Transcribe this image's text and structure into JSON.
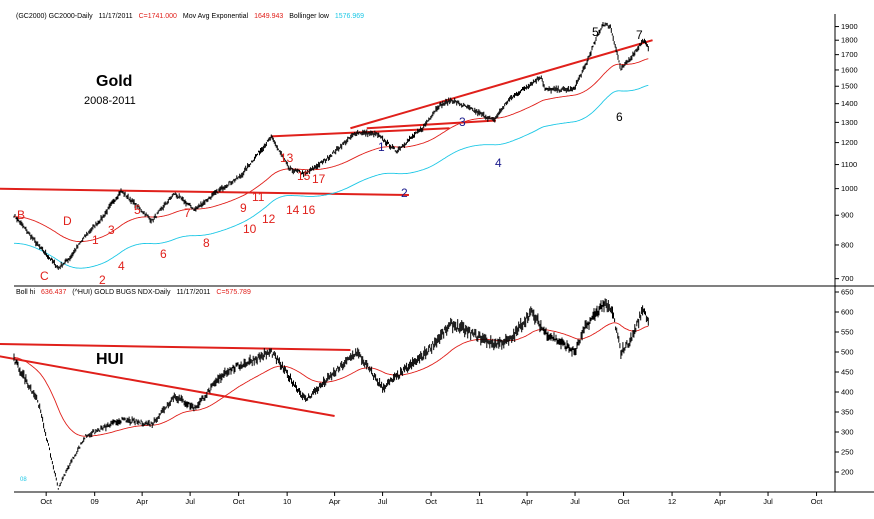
{
  "top_panel": {
    "header": {
      "symbol": "(GC2000) GC2000-Daily",
      "date": "11/17/2011",
      "close": "C=1741.000",
      "ema_label": "Mov Avg Exponential",
      "ema_value": "1649.943",
      "bb_label": "Bollinger low",
      "bb_value": "1576.969"
    },
    "title": "Gold",
    "subtitle": "2008-2011"
  },
  "bottom_panel": {
    "header": {
      "bb_label": "Boll hi",
      "bb_value": "636.437",
      "symbol": "(^HUI) GOLD BUGS NDX-Daily",
      "date": "11/17/2011",
      "close": "C=575.789"
    },
    "title": "HUI",
    "corner_label": "08"
  },
  "x_axis_labels": [
    "Oct",
    "09",
    "Apr",
    "Jul",
    "Oct",
    "10",
    "Apr",
    "Jul",
    "Oct",
    "11",
    "Apr",
    "Jul",
    "Oct",
    "12",
    "Apr",
    "Jul",
    "Oct"
  ],
  "wave_labels_red": [
    "B",
    "D",
    "C",
    "1",
    "2",
    "3",
    "4",
    "5",
    "6",
    "7",
    "8",
    "9",
    "10",
    "11",
    "12",
    "13",
    "14",
    "15",
    "16",
    "17"
  ],
  "wave_labels_blue": [
    "1",
    "2",
    "3",
    "4"
  ],
  "wave_labels_black": [
    "5",
    "6",
    "7"
  ],
  "colors": {
    "price": "#000000",
    "ema": "#e0201b",
    "bollinger": "#1ec8e6",
    "trendline": "#e0201b",
    "wave_blue": "#1a1a8c"
  },
  "chart_data": [
    {
      "type": "line",
      "title": "Gold",
      "subtitle": "2008-2011",
      "y_scale": "log",
      "ylim": [
        680,
        1950
      ],
      "y_ticks": [
        700,
        800,
        900,
        1000,
        1100,
        1200,
        1300,
        1400,
        1500,
        1600,
        1700,
        1800,
        1900
      ],
      "x": [
        "2008-08-01",
        "2008-09-15",
        "2008-10-24",
        "2008-11-15",
        "2008-12-15",
        "2009-01-15",
        "2009-02-20",
        "2009-04-20",
        "2009-06-01",
        "2009-07-10",
        "2009-09-05",
        "2009-10-05",
        "2009-12-02",
        "2010-01-05",
        "2010-02-05",
        "2010-03-15",
        "2010-05-13",
        "2010-06-20",
        "2010-07-27",
        "2010-09-15",
        "2010-10-14",
        "2010-11-09",
        "2011-01-28",
        "2011-02-25",
        "2011-04-28",
        "2011-05-05",
        "2011-06-28",
        "2011-07-20",
        "2011-08-23",
        "2011-09-06",
        "2011-09-26",
        "2011-10-15",
        "2011-11-08",
        "2011-11-17"
      ],
      "series": [
        {
          "values": [
            900,
            800,
            730,
            760,
            830,
            890,
            990,
            880,
            980,
            920,
            1010,
            1050,
            1225,
            1080,
            1060,
            1120,
            1250,
            1240,
            1160,
            1270,
            1385,
            1420,
            1310,
            1420,
            1560,
            1480,
            1480,
            1620,
            1920,
            1900,
            1600,
            1680,
            1800,
            1741
          ]
        }
      ],
      "trendlines_gold": [
        {
          "x": [
            "2008-06-15",
            "2010-08-20"
          ],
          "y": [
            1000,
            975
          ]
        },
        {
          "x": [
            "2009-12-01",
            "2010-11-05"
          ],
          "y": [
            1230,
            1270
          ]
        },
        {
          "x": [
            "2010-05-01",
            "2011-11-25"
          ],
          "y": [
            1270,
            1800
          ]
        },
        {
          "x": [
            "2010-06-01",
            "2011-02-01"
          ],
          "y": [
            1270,
            1310
          ]
        }
      ]
    },
    {
      "type": "line",
      "title": "HUI",
      "ylim": [
        150,
        675
      ],
      "y_ticks": [
        200,
        250,
        300,
        350,
        400,
        450,
        500,
        550,
        600,
        650
      ],
      "x": [
        "2008-08-01",
        "2008-09-15",
        "2008-10-24",
        "2008-11-15",
        "2008-12-15",
        "2009-02-20",
        "2009-04-20",
        "2009-06-01",
        "2009-07-10",
        "2009-09-05",
        "2009-12-02",
        "2010-02-05",
        "2010-05-13",
        "2010-07-01",
        "2010-09-15",
        "2010-11-09",
        "2011-01-28",
        "2011-03-01",
        "2011-04-08",
        "2011-05-05",
        "2011-07-01",
        "2011-07-20",
        "2011-08-23",
        "2011-09-10",
        "2011-09-26",
        "2011-10-15",
        "2011-11-08",
        "2011-11-17"
      ],
      "series": [
        {
          "values": [
            480,
            380,
            160,
            220,
            290,
            330,
            320,
            390,
            360,
            450,
            500,
            380,
            500,
            410,
            490,
            570,
            520,
            530,
            600,
            550,
            500,
            560,
            620,
            600,
            500,
            530,
            610,
            575.789
          ]
        }
      ],
      "trendlines_hui": [
        {
          "x": [
            "2008-07-01",
            "2010-05-01"
          ],
          "y": [
            520,
            505
          ]
        },
        {
          "x": [
            "2008-07-01",
            "2010-04-01"
          ],
          "y": [
            490,
            340
          ]
        }
      ]
    }
  ]
}
